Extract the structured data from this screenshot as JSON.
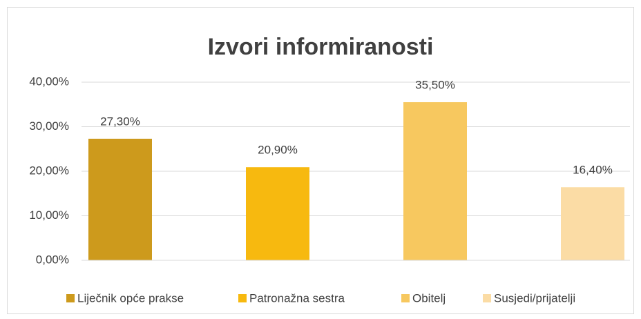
{
  "chart_data": {
    "type": "bar",
    "title": "Izvori informiranosti",
    "series": [
      {
        "name": "Liječnik opće prakse",
        "color": "#cd9a1c",
        "values": [
          27.3
        ],
        "value_labels": [
          "27,30%"
        ]
      },
      {
        "name": "Patronažna sestra",
        "color": "#f7b90f",
        "values": [
          20.9
        ],
        "value_labels": [
          "20,90%"
        ]
      },
      {
        "name": "Obitelj",
        "color": "#f7c85f",
        "values": [
          35.5
        ],
        "value_labels": [
          "35,50%"
        ]
      },
      {
        "name": "Susjedi/prijatelji",
        "color": "#fbdca5",
        "values": [
          16.4
        ],
        "value_labels": [
          "16,40%"
        ]
      }
    ],
    "ylim": [
      0,
      40
    ],
    "yticks": [
      {
        "value": 0,
        "label": "0,00%"
      },
      {
        "value": 10,
        "label": "10,00%"
      },
      {
        "value": 20,
        "label": "20,00%"
      },
      {
        "value": 30,
        "label": "30,00%"
      },
      {
        "value": 40,
        "label": "40,00%"
      }
    ],
    "grid": true,
    "legend": "bottom"
  }
}
